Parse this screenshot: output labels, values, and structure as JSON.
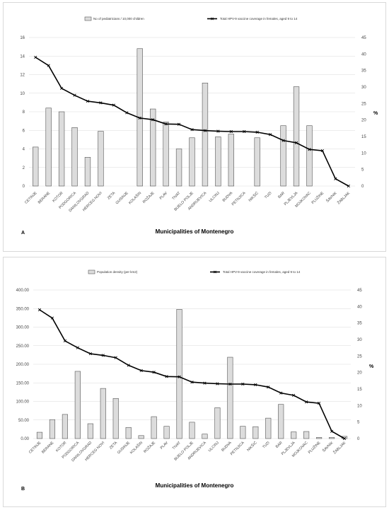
{
  "colors": {
    "bar_fill": "#dcdcdc",
    "bar_stroke": "#555555",
    "line": "#000000",
    "grid": "#d9d9d9"
  },
  "chart_data": [
    {
      "type": "bar",
      "panel_label": "A",
      "xlabel": "Municipalities of Montenegro",
      "categories": [
        "CETINJE",
        "BERANE",
        "KOTOR",
        "PODGORICA",
        "DANILOVGRAD",
        "HERCEG NOVI",
        "ZETA",
        "GUSINJE",
        "KOLAŠIN",
        "ROŽAJE",
        "PLAV",
        "TIVAT",
        "BIJELO POLJE",
        "ANDRIJEVICA",
        "ULCINJ",
        "BUDVA",
        "PETNJICA",
        "NIKŠIĆ",
        "TUZI",
        "BAR",
        "PLJEVLJA",
        "MOJKOVAC",
        "PLUŽINE",
        "ŠAVNIK",
        "ŽABLJAK"
      ],
      "y_left": {
        "ylim": [
          0,
          16
        ],
        "ticks": [
          "0",
          "2",
          "4",
          "6",
          "8",
          "10",
          "12",
          "14",
          "16"
        ]
      },
      "y_right": {
        "label": "%",
        "ylim": [
          0,
          45
        ],
        "ticks": [
          "0",
          "5",
          "10",
          "15",
          "20",
          "25",
          "30",
          "35",
          "40",
          "45"
        ]
      },
      "series": [
        {
          "name": "No of pediatricians / 10,000 children",
          "axis": "left",
          "kind": "bar",
          "values": [
            4.2,
            8.4,
            8.0,
            6.3,
            3.1,
            5.9,
            0,
            0,
            14.8,
            8.3,
            6.9,
            4.0,
            5.2,
            11.1,
            5.3,
            5.6,
            0,
            5.2,
            0,
            6.5,
            10.7,
            6.5,
            0,
            0,
            0
          ]
        },
        {
          "name": "Total HPV-9 vaccine coverage in females, aged 9 to 14",
          "axis": "right",
          "kind": "line",
          "values": [
            39.0,
            36.5,
            29.6,
            27.5,
            25.7,
            25.2,
            24.5,
            22.2,
            20.6,
            20.1,
            18.8,
            18.7,
            17.1,
            16.8,
            16.6,
            16.5,
            16.5,
            16.3,
            15.6,
            13.8,
            13.1,
            11.1,
            10.7,
            2.2,
            0
          ]
        }
      ]
    },
    {
      "type": "bar",
      "panel_label": "B",
      "xlabel": "Municipalities of Montenegro",
      "categories": [
        "CETINJE",
        "BERANE",
        "KOTOR",
        "PODGORICA",
        "DANILOVGRAD",
        "HERCEG NOVI",
        "ZETA",
        "GUSINJE",
        "KOLAŠIN",
        "ROŽAJE",
        "PLAV",
        "TIVAT",
        "BIJELO POLJE",
        "ANDRIJEVICA",
        "ULCINJ",
        "BUDVA",
        "PETNJICA",
        "NIKŠIĆ",
        "TUZI",
        "BAR",
        "PLJEVLJA",
        "MOJKOVAC",
        "PLUŽINE",
        "ŠAVNIK",
        "ŽABLJAK"
      ],
      "y_left": {
        "ylim": [
          0,
          400
        ],
        "ticks": [
          "0.00",
          "50.00",
          "100.00",
          "150.00",
          "200.00",
          "250.00",
          "300.00",
          "350.00",
          "400.00"
        ]
      },
      "y_right": {
        "label": "%",
        "ylim": [
          0,
          45
        ],
        "ticks": [
          "0",
          "5",
          "10",
          "15",
          "20",
          "25",
          "30",
          "35",
          "40",
          "45"
        ]
      },
      "series": [
        {
          "name": "Population density (per km2)",
          "axis": "left",
          "kind": "bar",
          "values": [
            17,
            51,
            65,
            181,
            40,
            135,
            108,
            30,
            8,
            59,
            33,
            348,
            44,
            12,
            83,
            219,
            33,
            32,
            55,
            92,
            18,
            19,
            3,
            3,
            6
          ]
        },
        {
          "name": "Total HPV-9 vaccine coverage in females, aged 9 to 14",
          "axis": "right",
          "kind": "line",
          "values": [
            39.0,
            36.5,
            29.6,
            27.5,
            25.7,
            25.2,
            24.5,
            22.2,
            20.6,
            20.1,
            18.8,
            18.7,
            17.1,
            16.8,
            16.6,
            16.5,
            16.5,
            16.3,
            15.6,
            13.8,
            13.1,
            11.1,
            10.7,
            2.2,
            0
          ]
        }
      ]
    }
  ]
}
